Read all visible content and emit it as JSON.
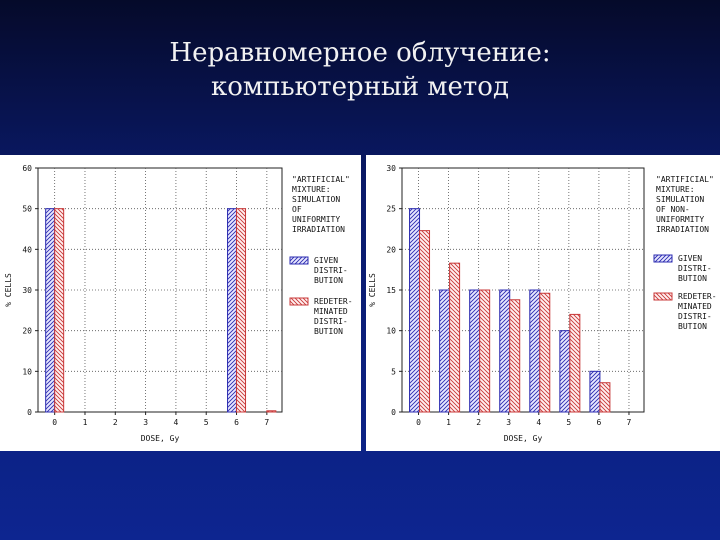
{
  "slide": {
    "title_line1": "Неравномерное облучение:",
    "title_line2": "компьютерный метод"
  },
  "colors": {
    "given": "#2b2bb0",
    "redetermined": "#c83838",
    "grid": "#555555"
  },
  "chart_data": [
    {
      "type": "bar",
      "ylabel": "% CELLS",
      "xlabel": "DOSE, Gy",
      "x": [
        0,
        1,
        2,
        3,
        4,
        5,
        6,
        7
      ],
      "ylim": [
        0,
        60
      ],
      "yticks": [
        0,
        10,
        20,
        30,
        40,
        50,
        60
      ],
      "grid": true,
      "annotation": [
        "\"ARTIFICIAL\"",
        "MIXTURE:",
        "SIMULATION",
        "OF",
        "UNIFORMITY",
        "IRRADIATION"
      ],
      "series": [
        {
          "name": "GIVEN DISTRI- BUTION",
          "legend_lines": [
            "GIVEN",
            "DISTRI-",
            "BUTION"
          ],
          "values": [
            50,
            0,
            0,
            0,
            0,
            0,
            50,
            0
          ]
        },
        {
          "name": "REDETER- MINATED DISTRI- BUTION",
          "legend_lines": [
            "REDETER-",
            "MINATED",
            "DISTRI-",
            "BUTION"
          ],
          "values": [
            50,
            0,
            0,
            0,
            0,
            0,
            50,
            0.3
          ]
        }
      ]
    },
    {
      "type": "bar",
      "ylabel": "% CELLS",
      "xlabel": "DOSE, Gy",
      "x": [
        0,
        1,
        2,
        3,
        4,
        5,
        6,
        7
      ],
      "ylim": [
        0,
        30
      ],
      "yticks": [
        0,
        5,
        10,
        15,
        20,
        25,
        30
      ],
      "grid": true,
      "annotation": [
        "\"ARTIFICIAL\"",
        "MIXTURE:",
        "SIMULATION",
        "OF NON-",
        "UNIFORMITY",
        "IRRADIATION"
      ],
      "series": [
        {
          "name": "GIVEN DISTRI- BUTION",
          "legend_lines": [
            "GIVEN",
            "DISTRI-",
            "BUTION"
          ],
          "values": [
            25,
            15,
            15,
            15,
            15,
            10,
            5,
            0
          ]
        },
        {
          "name": "REDETER- MINATED DISTRI- BUTION",
          "legend_lines": [
            "REDETER-",
            "MINATED",
            "DISTRI-",
            "BUTION"
          ],
          "values": [
            22.3,
            18.3,
            15,
            13.8,
            14.6,
            12,
            3.6,
            0
          ]
        }
      ]
    }
  ]
}
